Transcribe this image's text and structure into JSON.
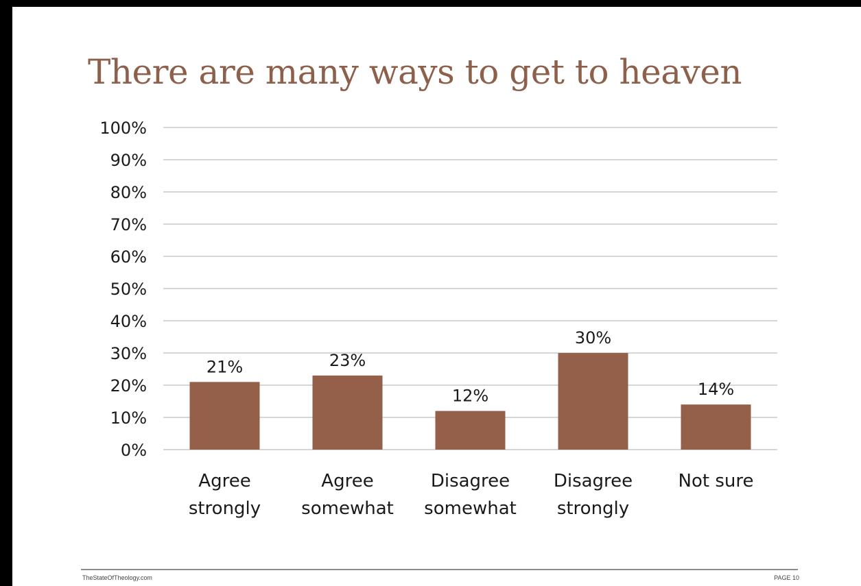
{
  "chart_data": {
    "type": "bar",
    "title": "There are many ways to get to heaven",
    "categories": [
      [
        "Agree",
        "strongly"
      ],
      [
        "Agree",
        "somewhat"
      ],
      [
        "Disagree",
        "somewhat"
      ],
      [
        "Disagree",
        "strongly"
      ],
      [
        "Not sure"
      ]
    ],
    "values": [
      21,
      23,
      12,
      30,
      14
    ],
    "data_labels": [
      "21%",
      "23%",
      "12%",
      "30%",
      "14%"
    ],
    "yticks": [
      "0%",
      "10%",
      "20%",
      "30%",
      "40%",
      "50%",
      "60%",
      "70%",
      "80%",
      "90%",
      "100%"
    ],
    "ylim": [
      0,
      100
    ],
    "grid": true,
    "xlabel": "",
    "ylabel": "",
    "colors": {
      "bar": "#94604a",
      "title": "#8d604b",
      "grid": "#c8c8c8",
      "axis_text": "#1a1a1a"
    }
  },
  "footer": {
    "left": "TheStateOfTheology.com",
    "right": "PAGE 10"
  }
}
